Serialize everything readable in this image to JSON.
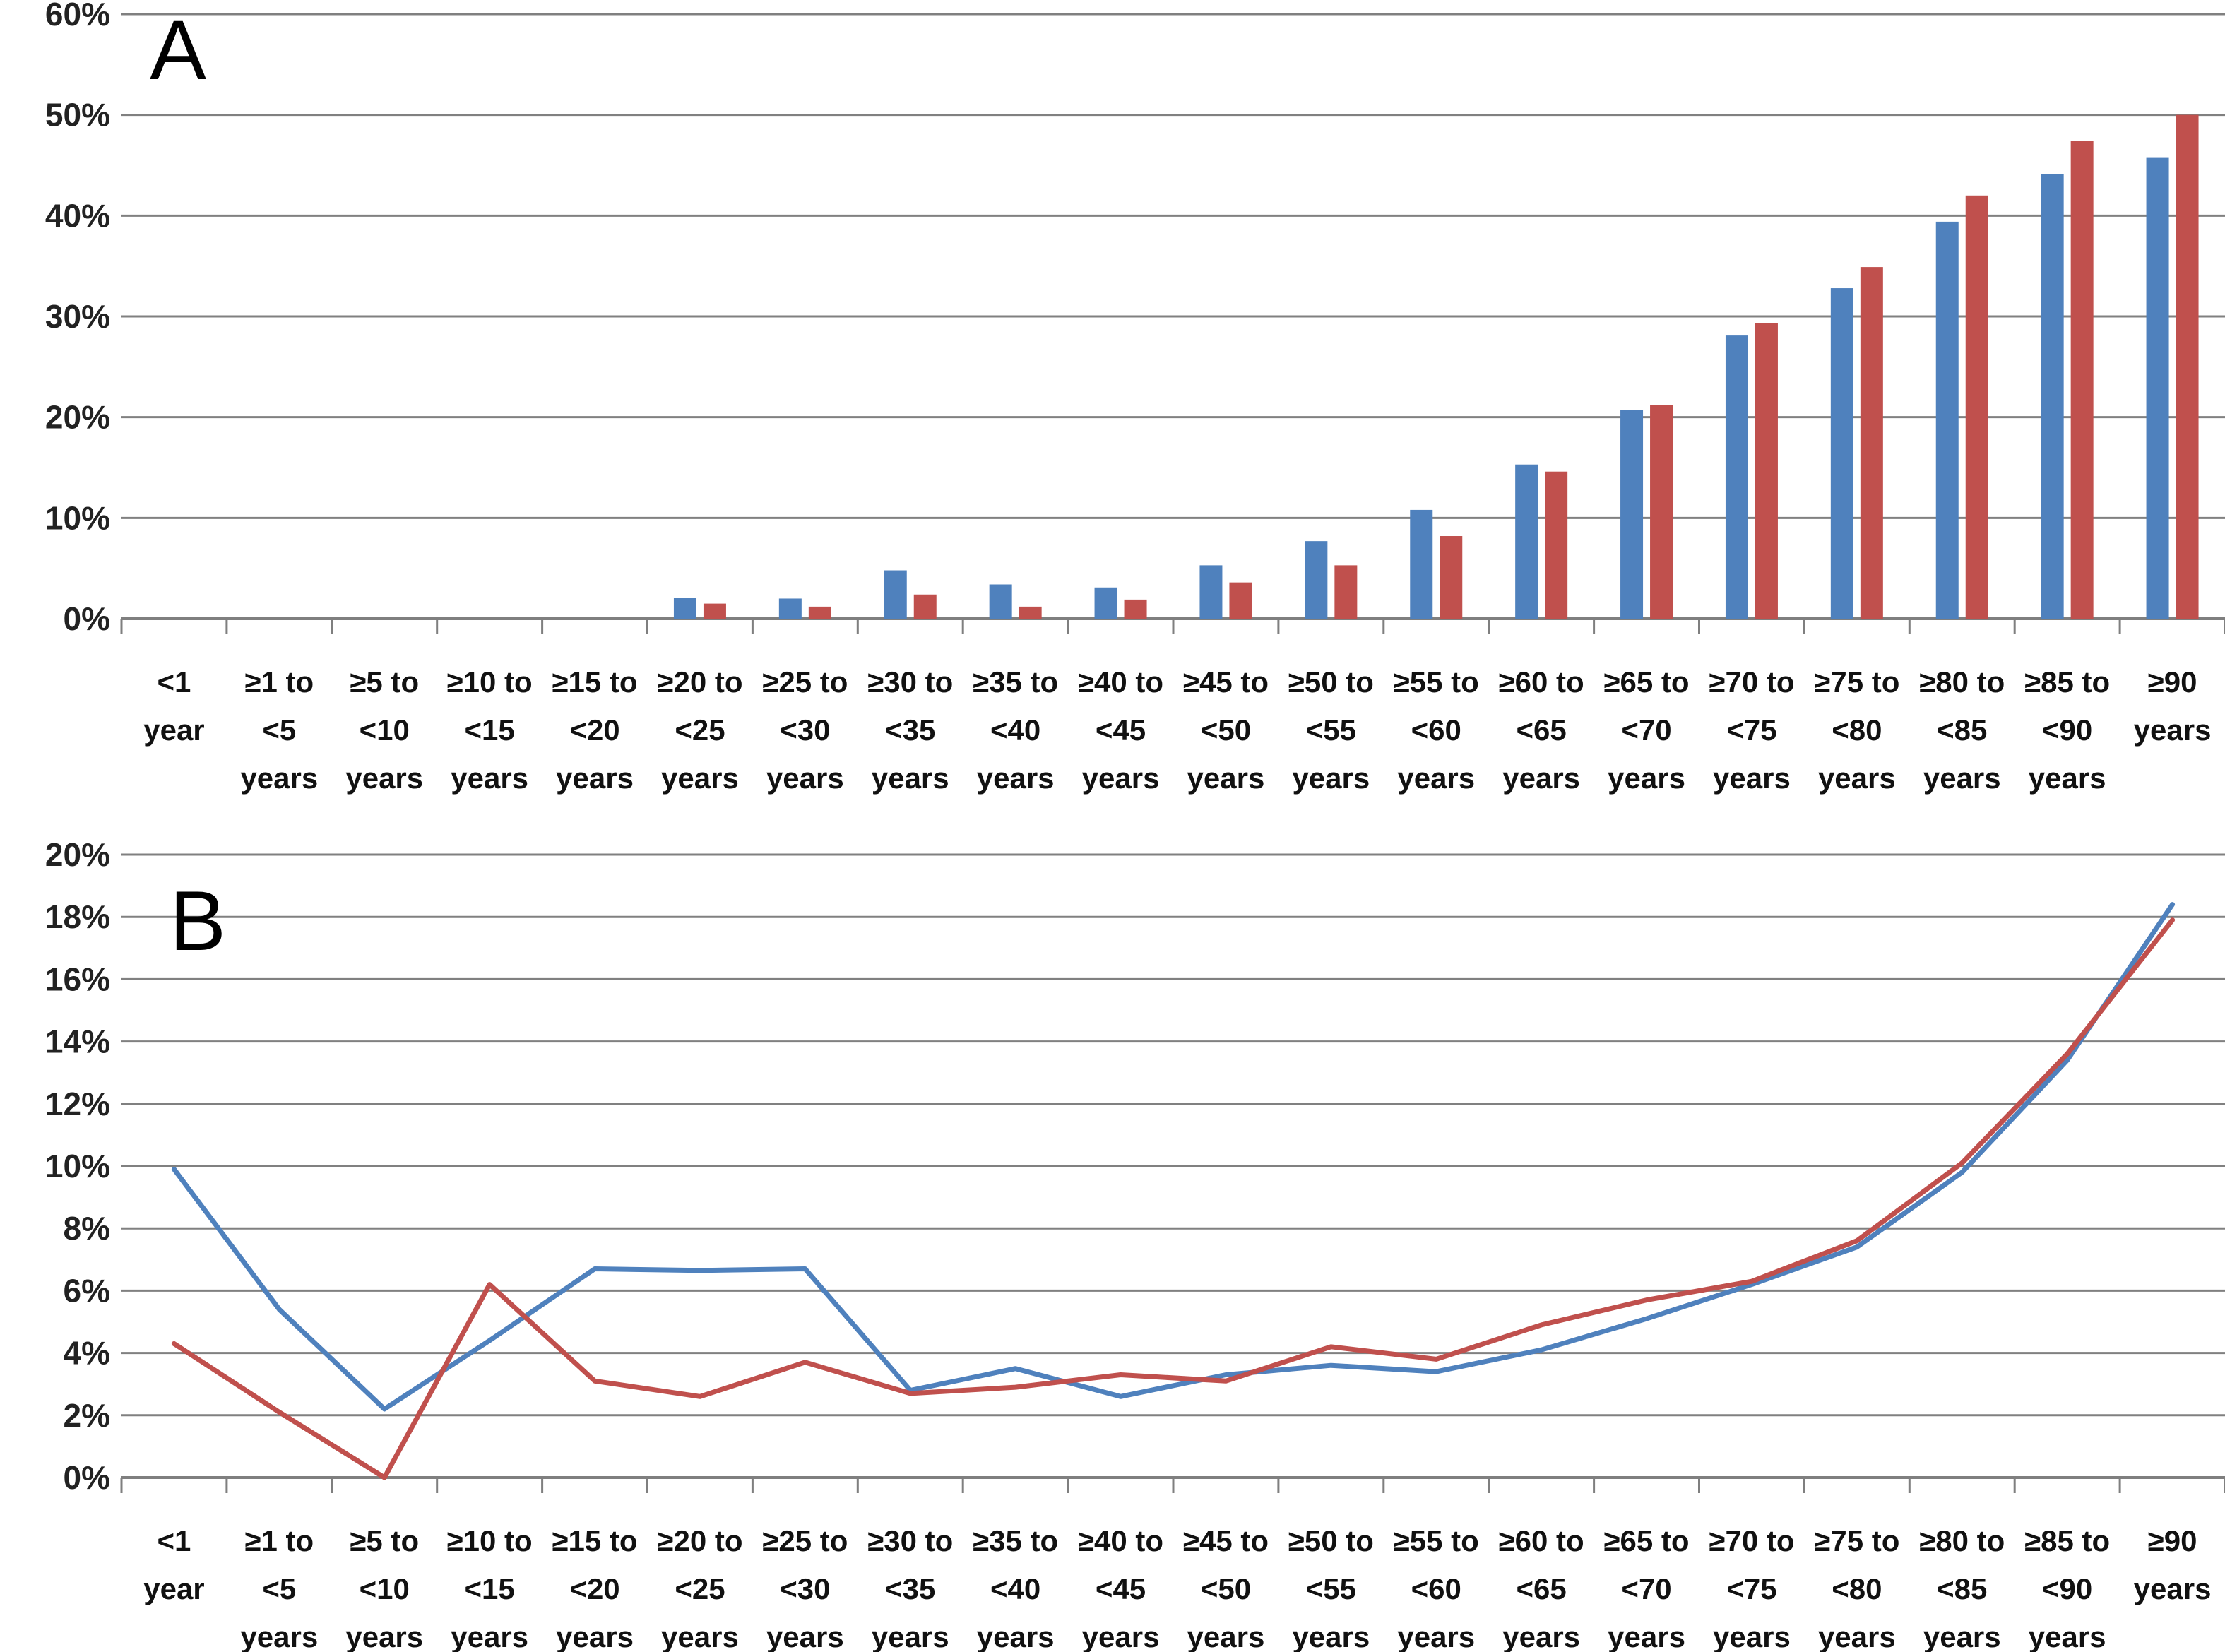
{
  "colors": {
    "series_1": "#4F81BD",
    "series_2": "#C0504D",
    "grid": "#808080",
    "axis": "#7f7f7f"
  },
  "chart_data": [
    {
      "panel_label": "A",
      "type": "bar",
      "categories": [
        [
          "<1",
          "year"
        ],
        [
          "≥1 to",
          "<5",
          "years"
        ],
        [
          "≥5 to",
          "<10",
          "years"
        ],
        [
          "≥10 to",
          "<15",
          "years"
        ],
        [
          "≥15 to",
          "<20",
          "years"
        ],
        [
          "≥20 to",
          "<25",
          "years"
        ],
        [
          "≥25 to",
          "<30",
          "years"
        ],
        [
          "≥30 to",
          "<35",
          "years"
        ],
        [
          "≥35 to",
          "<40",
          "years"
        ],
        [
          "≥40 to",
          "<45",
          "years"
        ],
        [
          "≥45 to",
          "<50",
          "years"
        ],
        [
          "≥50 to",
          "<55",
          "years"
        ],
        [
          "≥55 to",
          "<60",
          "years"
        ],
        [
          "≥60 to",
          "<65",
          "years"
        ],
        [
          "≥65 to",
          "<70",
          "years"
        ],
        [
          "≥70 to",
          "<75",
          "years"
        ],
        [
          "≥75 to",
          "<80",
          "years"
        ],
        [
          "≥80 to",
          "<85",
          "years"
        ],
        [
          "≥85 to",
          "<90",
          "years"
        ],
        [
          "≥90",
          "years"
        ]
      ],
      "series": [
        {
          "color": "#4F81BD",
          "values": [
            0,
            0,
            0,
            0,
            0,
            2.1,
            2.0,
            4.8,
            3.4,
            3.1,
            5.3,
            7.7,
            10.8,
            15.3,
            20.7,
            28.1,
            32.8,
            39.4,
            44.1,
            45.8
          ]
        },
        {
          "color": "#C0504D",
          "values": [
            0,
            0,
            0,
            0,
            0,
            1.5,
            1.2,
            2.4,
            1.2,
            1.9,
            3.6,
            5.3,
            8.2,
            14.6,
            21.2,
            29.3,
            34.9,
            42.0,
            47.4,
            50.0
          ]
        }
      ],
      "ylim": [
        0,
        60
      ],
      "yticks": [
        "0%",
        "10%",
        "20%",
        "30%",
        "40%",
        "50%",
        "60%"
      ],
      "grid": true
    },
    {
      "panel_label": "B",
      "type": "line",
      "categories": [
        [
          "<1",
          "year"
        ],
        [
          "≥1 to",
          "<5",
          "years"
        ],
        [
          "≥5 to",
          "<10",
          "years"
        ],
        [
          "≥10 to",
          "<15",
          "years"
        ],
        [
          "≥15 to",
          "<20",
          "years"
        ],
        [
          "≥20 to",
          "<25",
          "years"
        ],
        [
          "≥25 to",
          "<30",
          "years"
        ],
        [
          "≥30 to",
          "<35",
          "years"
        ],
        [
          "≥35 to",
          "<40",
          "years"
        ],
        [
          "≥40 to",
          "<45",
          "years"
        ],
        [
          "≥45 to",
          "<50",
          "years"
        ],
        [
          "≥50 to",
          "<55",
          "years"
        ],
        [
          "≥55 to",
          "<60",
          "years"
        ],
        [
          "≥60 to",
          "<65",
          "years"
        ],
        [
          "≥65 to",
          "<70",
          "years"
        ],
        [
          "≥70 to",
          "<75",
          "years"
        ],
        [
          "≥75 to",
          "<80",
          "years"
        ],
        [
          "≥80 to",
          "<85",
          "years"
        ],
        [
          "≥85 to",
          "<90",
          "years"
        ],
        [
          "≥90",
          "years"
        ]
      ],
      "series": [
        {
          "color": "#4F81BD",
          "values": [
            9.9,
            5.4,
            2.2,
            4.4,
            6.7,
            6.65,
            6.7,
            2.8,
            3.5,
            2.6,
            3.3,
            3.6,
            3.4,
            4.1,
            5.1,
            6.2,
            7.4,
            9.8,
            13.4,
            18.4
          ]
        },
        {
          "color": "#C0504D",
          "values": [
            4.3,
            2.1,
            0.0,
            6.2,
            3.1,
            2.6,
            3.7,
            2.7,
            2.9,
            3.3,
            3.1,
            4.2,
            3.8,
            4.9,
            5.7,
            6.3,
            7.6,
            10.1,
            13.6,
            17.9
          ]
        }
      ],
      "ylim": [
        0,
        20
      ],
      "yticks": [
        "0%",
        "2%",
        "4%",
        "6%",
        "8%",
        "10%",
        "12%",
        "14%",
        "16%",
        "18%",
        "20%"
      ],
      "grid": true
    }
  ]
}
